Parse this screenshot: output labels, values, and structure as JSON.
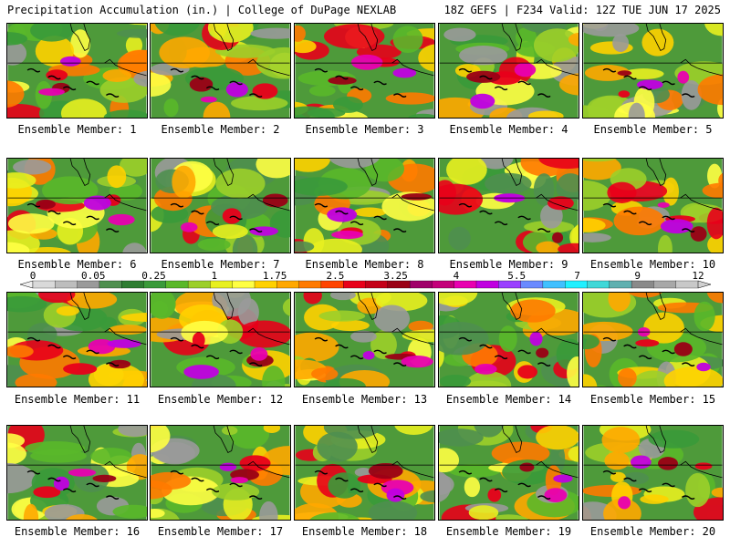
{
  "header": {
    "left": "Precipitation Accumulation (in.) | College of DuPage NEXLAB",
    "right": "18Z GEFS | F234 Valid: 12Z TUE JUN 17 2025"
  },
  "legend": {
    "tick_labels": [
      "0",
      "0.05",
      "0.25",
      "1",
      "1.75",
      "2.5",
      "3.25",
      "4",
      "5.5",
      "7",
      "9",
      "12"
    ],
    "colors": [
      "#d9d9d9",
      "#bdbdbd",
      "#9a9a9a",
      "#4f8f4f",
      "#2e7d32",
      "#3a9a3a",
      "#5ab82a",
      "#9ccf2a",
      "#e8f020",
      "#ffff44",
      "#ffd100",
      "#ffa800",
      "#ff7a00",
      "#ff4400",
      "#e8001a",
      "#c40018",
      "#9a0015",
      "#a0006a",
      "#c4007a",
      "#e800b0",
      "#c000e0",
      "#9a40ff",
      "#6a8aff",
      "#40c0ff",
      "#20f0ff",
      "#40d8d8",
      "#60b0b0",
      "#8a8a8a",
      "#a8a8a8",
      "#c8c8c8"
    ]
  },
  "panels": [
    {
      "label": "Ensemble Member: 1"
    },
    {
      "label": "Ensemble Member: 2"
    },
    {
      "label": "Ensemble Member: 3"
    },
    {
      "label": "Ensemble Member: 4"
    },
    {
      "label": "Ensemble Member: 5"
    },
    {
      "label": "Ensemble Member: 6"
    },
    {
      "label": "Ensemble Member: 7"
    },
    {
      "label": "Ensemble Member: 8"
    },
    {
      "label": "Ensemble Member: 9"
    },
    {
      "label": "Ensemble Member: 10"
    },
    {
      "label": "Ensemble Member: 11"
    },
    {
      "label": "Ensemble Member: 12"
    },
    {
      "label": "Ensemble Member: 13"
    },
    {
      "label": "Ensemble Member: 14"
    },
    {
      "label": "Ensemble Member: 15"
    },
    {
      "label": "Ensemble Member: 16"
    },
    {
      "label": "Ensemble Member: 17"
    },
    {
      "label": "Ensemble Member: 18"
    },
    {
      "label": "Ensemble Member: 19"
    },
    {
      "label": "Ensemble Member: 20"
    }
  ]
}
